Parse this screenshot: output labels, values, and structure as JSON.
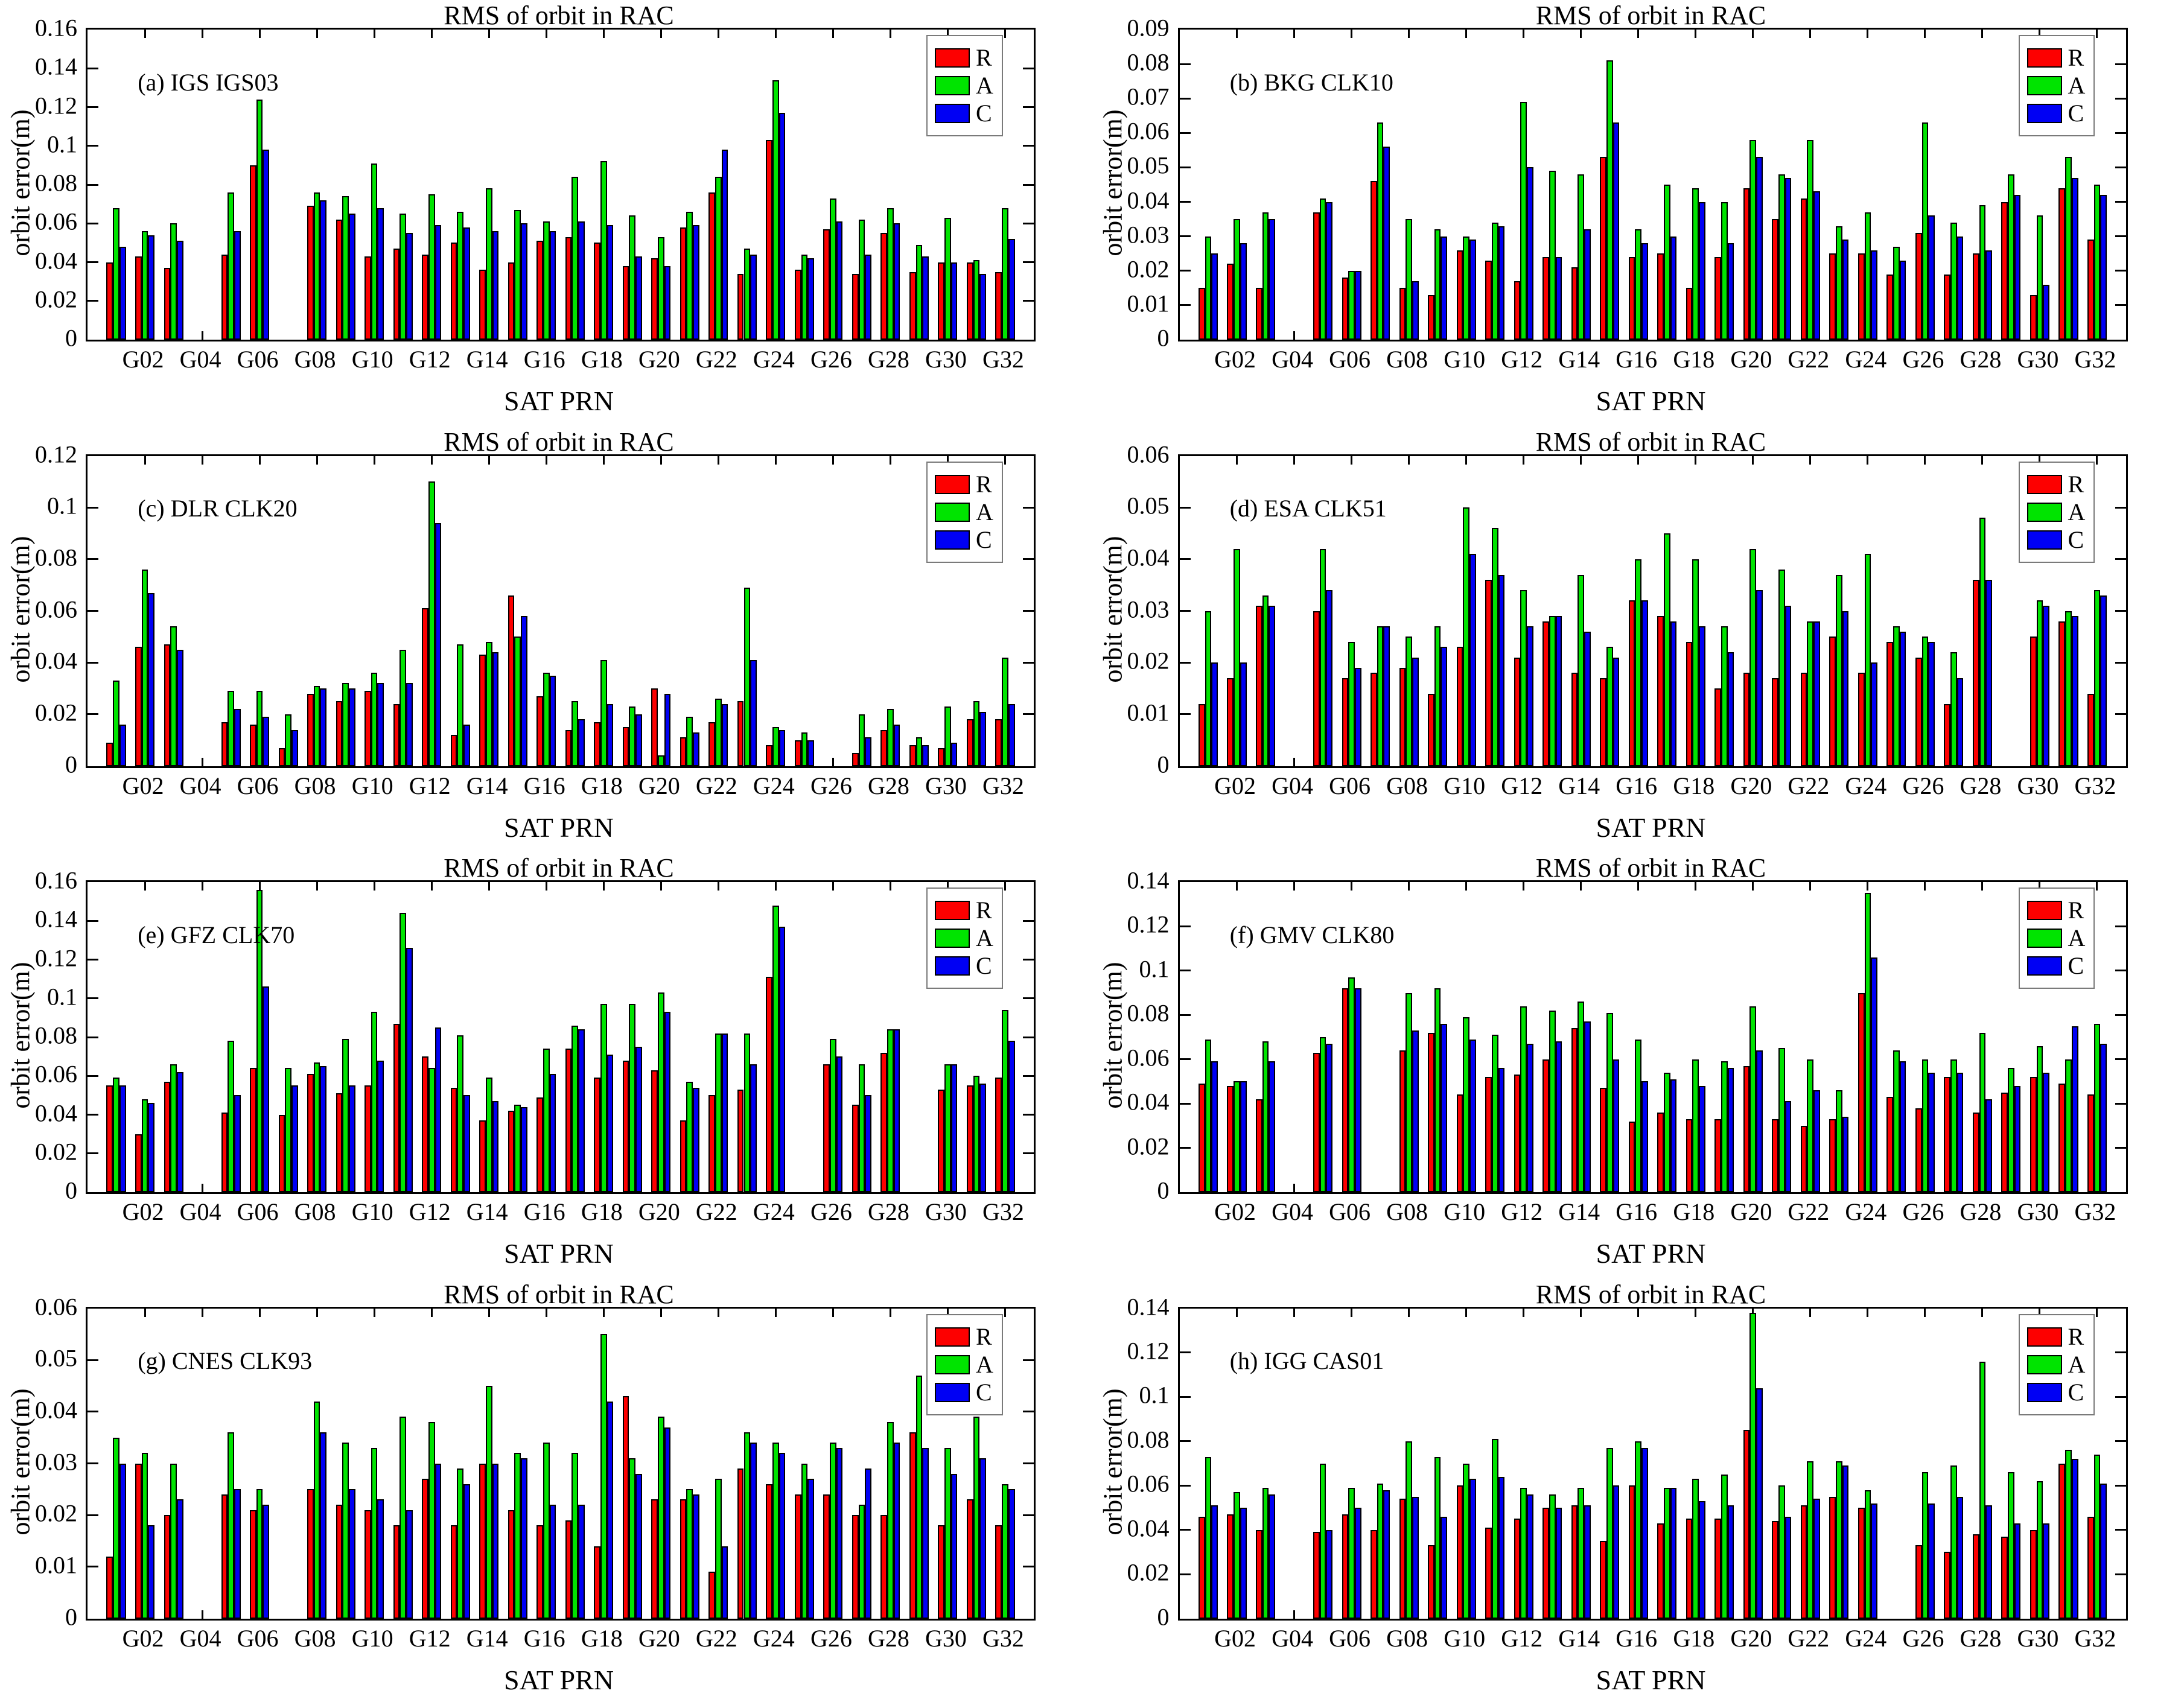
{
  "title": "RMS of orbit in RAC",
  "xlabel": "SAT  PRN",
  "ylabel": "orbit error(m)",
  "legend": [
    "R",
    "A",
    "C"
  ],
  "colors": {
    "R": "#fd0000",
    "A": "#00e400",
    "C": "#0000f4",
    "axis": "#000000",
    "legend_border": "#7a7a7a",
    "background": "#ffffff"
  },
  "satellites": [
    "G01",
    "G02",
    "G03",
    "G04",
    "G05",
    "G06",
    "G07",
    "G08",
    "G09",
    "G10",
    "G11",
    "G12",
    "G13",
    "G14",
    "G15",
    "G16",
    "G17",
    "G18",
    "G19",
    "G20",
    "G21",
    "G22",
    "G23",
    "G24",
    "G25",
    "G26",
    "G27",
    "G28",
    "G29",
    "G30",
    "G31",
    "G32"
  ],
  "x_tick_labels": [
    "G02",
    "G04",
    "G06",
    "G08",
    "G10",
    "G12",
    "G14",
    "G16",
    "G18",
    "G20",
    "G22",
    "G24",
    "G26",
    "G28",
    "G30",
    "G32"
  ],
  "chart_data": [
    {
      "type": "bar",
      "panel_label": "(a) IGS IGS03",
      "title": "RMS of orbit in RAC",
      "xlabel": "SAT  PRN",
      "ylabel": "orbit error(m)",
      "ylim": [
        0,
        0.16
      ],
      "ytick_step": 0.02,
      "legend_position": "upper-right",
      "series": [
        {
          "name": "R",
          "values": [
            0.04,
            0.043,
            0.037,
            null,
            0.044,
            0.09,
            null,
            0.069,
            0.062,
            0.043,
            0.047,
            0.044,
            0.05,
            0.036,
            0.04,
            0.051,
            0.053,
            0.05,
            0.038,
            0.042,
            0.058,
            0.076,
            0.034,
            0.103,
            0.036,
            0.057,
            0.034,
            0.055,
            0.035,
            0.04,
            0.04,
            0.035
          ]
        },
        {
          "name": "A",
          "values": [
            0.068,
            0.056,
            0.06,
            null,
            0.076,
            0.124,
            null,
            0.076,
            0.074,
            0.091,
            0.065,
            0.075,
            0.066,
            0.078,
            0.067,
            0.061,
            0.084,
            0.092,
            0.064,
            0.053,
            0.066,
            0.084,
            0.047,
            0.134,
            0.044,
            0.073,
            0.062,
            0.068,
            0.049,
            0.063,
            0.041,
            0.068
          ]
        },
        {
          "name": "C",
          "values": [
            0.048,
            0.054,
            0.051,
            null,
            0.056,
            0.098,
            null,
            0.072,
            0.065,
            0.068,
            0.055,
            0.059,
            0.058,
            0.056,
            0.06,
            0.056,
            0.061,
            0.059,
            0.043,
            0.038,
            0.059,
            0.098,
            0.044,
            0.117,
            0.042,
            0.061,
            0.044,
            0.06,
            0.043,
            0.04,
            0.034,
            0.052
          ]
        }
      ]
    },
    {
      "type": "bar",
      "panel_label": "(b) BKG CLK10",
      "title": "RMS of orbit in RAC",
      "xlabel": "SAT  PRN",
      "ylabel": "orbit error(m)",
      "ylim": [
        0,
        0.09
      ],
      "ytick_step": 0.01,
      "legend_position": "upper-right",
      "series": [
        {
          "name": "R",
          "values": [
            0.015,
            0.022,
            0.015,
            null,
            0.037,
            0.018,
            0.046,
            0.015,
            0.013,
            0.026,
            0.023,
            0.017,
            0.024,
            0.021,
            0.053,
            0.024,
            0.025,
            0.015,
            0.024,
            0.044,
            0.035,
            0.041,
            0.025,
            0.025,
            0.019,
            0.031,
            0.019,
            0.025,
            0.04,
            0.013,
            0.044,
            0.029
          ]
        },
        {
          "name": "A",
          "values": [
            0.03,
            0.035,
            0.037,
            null,
            0.041,
            0.02,
            0.063,
            0.035,
            0.032,
            0.03,
            0.034,
            0.069,
            0.049,
            0.048,
            0.081,
            0.032,
            0.045,
            0.044,
            0.04,
            0.058,
            0.048,
            0.058,
            0.033,
            0.037,
            0.027,
            0.063,
            0.034,
            0.039,
            0.048,
            0.036,
            0.053,
            0.045
          ]
        },
        {
          "name": "C",
          "values": [
            0.025,
            0.028,
            0.035,
            null,
            0.04,
            0.02,
            0.056,
            0.017,
            0.03,
            0.029,
            0.033,
            0.05,
            0.024,
            0.032,
            0.063,
            0.028,
            0.03,
            0.04,
            0.028,
            0.053,
            0.047,
            0.043,
            0.029,
            0.026,
            0.023,
            0.036,
            0.03,
            0.026,
            0.042,
            0.016,
            0.047,
            0.042
          ]
        }
      ]
    },
    {
      "type": "bar",
      "panel_label": "(c) DLR CLK20",
      "title": "RMS of orbit in RAC",
      "xlabel": "SAT  PRN",
      "ylabel": "orbit error(m)",
      "ylim": [
        0,
        0.12
      ],
      "ytick_step": 0.02,
      "legend_position": "upper-right",
      "series": [
        {
          "name": "R",
          "values": [
            0.009,
            0.046,
            0.047,
            null,
            0.017,
            0.016,
            0.007,
            0.028,
            0.025,
            0.029,
            0.024,
            0.061,
            0.012,
            0.043,
            0.066,
            0.027,
            0.014,
            0.017,
            0.015,
            0.03,
            0.011,
            0.017,
            0.025,
            0.008,
            0.01,
            null,
            0.005,
            0.014,
            0.008,
            0.007,
            0.018,
            0.018
          ]
        },
        {
          "name": "A",
          "values": [
            0.033,
            0.076,
            0.054,
            null,
            0.029,
            0.029,
            0.02,
            0.031,
            0.032,
            0.036,
            0.045,
            0.11,
            0.047,
            0.048,
            0.05,
            0.036,
            0.025,
            0.041,
            0.023,
            0.004,
            0.019,
            0.026,
            0.069,
            0.015,
            0.013,
            null,
            0.02,
            0.022,
            0.011,
            0.023,
            0.025,
            0.042
          ]
        },
        {
          "name": "C",
          "values": [
            0.016,
            0.067,
            0.045,
            null,
            0.022,
            0.019,
            0.014,
            0.03,
            0.03,
            0.032,
            0.032,
            0.094,
            0.016,
            0.044,
            0.058,
            0.035,
            0.018,
            0.024,
            0.02,
            0.028,
            0.013,
            0.024,
            0.041,
            0.014,
            0.01,
            null,
            0.011,
            0.016,
            0.008,
            0.009,
            0.021,
            0.024
          ]
        }
      ]
    },
    {
      "type": "bar",
      "panel_label": "(d) ESA CLK51",
      "title": "RMS of orbit in RAC",
      "xlabel": "SAT  PRN",
      "ylabel": "orbit error(m)",
      "ylim": [
        0,
        0.06
      ],
      "ytick_step": 0.01,
      "legend_position": "upper-right",
      "series": [
        {
          "name": "R",
          "values": [
            0.012,
            0.017,
            0.031,
            null,
            0.03,
            0.017,
            0.018,
            0.019,
            0.014,
            0.023,
            0.036,
            0.021,
            0.028,
            0.018,
            0.017,
            0.032,
            0.029,
            0.024,
            0.015,
            0.018,
            0.017,
            0.018,
            0.025,
            0.018,
            0.024,
            0.021,
            0.012,
            0.036,
            null,
            0.025,
            0.028,
            0.014
          ]
        },
        {
          "name": "A",
          "values": [
            0.03,
            0.042,
            0.033,
            null,
            0.042,
            0.024,
            0.027,
            0.025,
            0.027,
            0.05,
            0.046,
            0.034,
            0.029,
            0.037,
            0.023,
            0.04,
            0.045,
            0.04,
            0.027,
            0.042,
            0.038,
            0.028,
            0.037,
            0.041,
            0.027,
            0.025,
            0.022,
            0.048,
            null,
            0.032,
            0.03,
            0.034
          ]
        },
        {
          "name": "C",
          "values": [
            0.02,
            0.02,
            0.031,
            null,
            0.034,
            0.019,
            0.027,
            0.021,
            0.023,
            0.041,
            0.037,
            0.027,
            0.029,
            0.026,
            0.021,
            0.032,
            0.028,
            0.027,
            0.022,
            0.034,
            0.031,
            0.028,
            0.03,
            0.02,
            0.026,
            0.024,
            0.017,
            0.036,
            null,
            0.031,
            0.029,
            0.033
          ]
        }
      ]
    },
    {
      "type": "bar",
      "panel_label": "(e) GFZ CLK70",
      "title": "RMS of orbit in RAC",
      "xlabel": "SAT  PRN",
      "ylabel": "orbit error(m)",
      "ylim": [
        0,
        0.16
      ],
      "ytick_step": 0.02,
      "legend_position": "upper-right",
      "series": [
        {
          "name": "R",
          "values": [
            0.055,
            0.03,
            0.057,
            null,
            0.041,
            0.064,
            0.04,
            0.061,
            0.051,
            0.055,
            0.087,
            0.07,
            0.054,
            0.037,
            0.042,
            0.049,
            0.074,
            0.059,
            0.068,
            0.063,
            0.037,
            0.05,
            0.053,
            0.111,
            null,
            0.066,
            0.045,
            0.072,
            null,
            0.053,
            0.055,
            0.059
          ]
        },
        {
          "name": "A",
          "values": [
            0.059,
            0.048,
            0.066,
            null,
            0.078,
            0.156,
            0.064,
            0.067,
            0.079,
            0.093,
            0.144,
            0.064,
            0.081,
            0.059,
            0.045,
            0.074,
            0.086,
            0.097,
            0.097,
            0.103,
            0.057,
            0.082,
            0.082,
            0.148,
            null,
            0.079,
            0.066,
            0.084,
            null,
            0.066,
            0.06,
            0.094
          ]
        },
        {
          "name": "C",
          "values": [
            0.055,
            0.046,
            0.062,
            null,
            0.05,
            0.106,
            0.055,
            0.065,
            0.055,
            0.068,
            0.126,
            0.085,
            0.05,
            0.047,
            0.044,
            0.061,
            0.084,
            0.071,
            0.075,
            0.093,
            0.054,
            0.082,
            0.066,
            0.137,
            null,
            0.07,
            0.05,
            0.084,
            null,
            0.066,
            0.056,
            0.078
          ]
        }
      ]
    },
    {
      "type": "bar",
      "panel_label": "(f) GMV CLK80",
      "title": "RMS of orbit in RAC",
      "xlabel": "SAT  PRN",
      "ylabel": "orbit error(m)",
      "ylim": [
        0,
        0.14
      ],
      "ytick_step": 0.02,
      "legend_position": "upper-right",
      "series": [
        {
          "name": "R",
          "values": [
            0.049,
            0.048,
            0.042,
            null,
            0.063,
            0.092,
            null,
            0.064,
            0.072,
            0.044,
            0.052,
            0.053,
            0.06,
            0.074,
            0.047,
            0.032,
            0.036,
            0.033,
            0.033,
            0.057,
            0.033,
            0.03,
            0.033,
            0.09,
            0.043,
            0.038,
            0.052,
            0.036,
            0.045,
            0.052,
            0.049,
            0.044
          ]
        },
        {
          "name": "A",
          "values": [
            0.069,
            0.05,
            0.068,
            null,
            0.07,
            0.097,
            null,
            0.09,
            0.092,
            0.079,
            0.071,
            0.084,
            0.082,
            0.086,
            0.081,
            0.069,
            0.054,
            0.06,
            0.059,
            0.084,
            0.065,
            0.06,
            0.046,
            0.135,
            0.064,
            0.06,
            0.06,
            0.072,
            0.056,
            0.066,
            0.06,
            0.076
          ]
        },
        {
          "name": "C",
          "values": [
            0.059,
            0.05,
            0.059,
            null,
            0.067,
            0.092,
            null,
            0.073,
            0.076,
            0.069,
            0.056,
            0.067,
            0.068,
            0.077,
            0.06,
            0.05,
            0.051,
            0.048,
            0.056,
            0.064,
            0.041,
            0.046,
            0.034,
            0.106,
            0.059,
            0.054,
            0.054,
            0.042,
            0.048,
            0.054,
            0.075,
            0.067
          ]
        }
      ]
    },
    {
      "type": "bar",
      "panel_label": "(g) CNES CLK93",
      "title": "RMS of orbit in RAC",
      "xlabel": "SAT  PRN",
      "ylabel": "orbit error(m)",
      "ylim": [
        0,
        0.06
      ],
      "ytick_step": 0.01,
      "legend_position": "upper-right",
      "series": [
        {
          "name": "R",
          "values": [
            0.012,
            0.03,
            0.02,
            null,
            0.024,
            0.021,
            null,
            0.025,
            0.022,
            0.021,
            0.018,
            0.027,
            0.018,
            0.03,
            0.021,
            0.018,
            0.019,
            0.014,
            0.043,
            0.023,
            0.023,
            0.009,
            0.029,
            0.026,
            0.024,
            0.024,
            0.02,
            0.02,
            0.036,
            0.018,
            0.023,
            0.018
          ]
        },
        {
          "name": "A",
          "values": [
            0.035,
            0.032,
            0.03,
            null,
            0.036,
            0.025,
            null,
            0.042,
            0.034,
            0.033,
            0.039,
            0.038,
            0.029,
            0.045,
            0.032,
            0.034,
            0.032,
            0.055,
            0.031,
            0.039,
            0.025,
            0.027,
            0.036,
            0.034,
            0.03,
            0.034,
            0.022,
            0.038,
            0.047,
            0.033,
            0.039,
            0.026
          ]
        },
        {
          "name": "C",
          "values": [
            0.03,
            0.018,
            0.023,
            null,
            0.025,
            0.022,
            null,
            0.036,
            0.025,
            0.023,
            0.021,
            0.03,
            0.026,
            0.03,
            0.031,
            0.022,
            0.022,
            0.042,
            0.028,
            0.037,
            0.024,
            0.014,
            0.034,
            0.032,
            0.027,
            0.033,
            0.029,
            0.034,
            0.033,
            0.028,
            0.031,
            0.025
          ]
        }
      ]
    },
    {
      "type": "bar",
      "panel_label": "(h) IGG CAS01",
      "title": "RMS of orbit in RAC",
      "xlabel": "SAT  PRN",
      "ylabel": "orbit error(m)",
      "ylim": [
        0,
        0.14
      ],
      "ytick_step": 0.02,
      "legend_position": "upper-right",
      "series": [
        {
          "name": "R",
          "values": [
            0.046,
            0.047,
            0.04,
            null,
            0.039,
            0.047,
            0.04,
            0.054,
            0.033,
            0.06,
            0.041,
            0.045,
            0.05,
            0.051,
            0.035,
            0.06,
            0.043,
            0.045,
            0.045,
            0.085,
            0.044,
            0.051,
            0.055,
            0.05,
            null,
            0.033,
            0.03,
            0.038,
            0.037,
            0.04,
            0.07,
            0.046
          ]
        },
        {
          "name": "A",
          "values": [
            0.073,
            0.057,
            0.059,
            null,
            0.07,
            0.059,
            0.061,
            0.08,
            0.073,
            0.07,
            0.081,
            0.059,
            0.056,
            0.059,
            0.077,
            0.08,
            0.059,
            0.063,
            0.065,
            0.138,
            0.06,
            0.071,
            0.071,
            0.058,
            null,
            0.066,
            0.069,
            0.116,
            0.066,
            0.062,
            0.076,
            0.074
          ]
        },
        {
          "name": "C",
          "values": [
            0.051,
            0.05,
            0.056,
            null,
            0.04,
            0.05,
            0.058,
            0.055,
            0.046,
            0.063,
            0.064,
            0.056,
            0.05,
            0.051,
            0.06,
            0.077,
            0.059,
            0.053,
            0.051,
            0.104,
            0.046,
            0.054,
            0.069,
            0.052,
            null,
            0.052,
            0.055,
            0.051,
            0.043,
            0.043,
            0.072,
            0.061
          ]
        }
      ]
    }
  ]
}
